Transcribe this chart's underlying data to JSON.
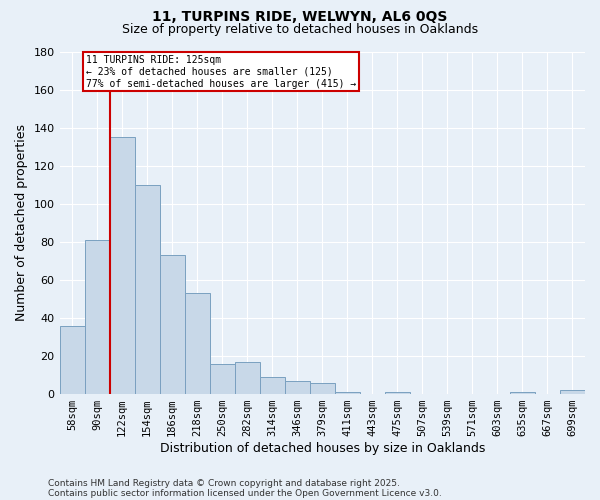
{
  "title1": "11, TURPINS RIDE, WELWYN, AL6 0QS",
  "title2": "Size of property relative to detached houses in Oaklands",
  "xlabel": "Distribution of detached houses by size in Oaklands",
  "ylabel": "Number of detached properties",
  "categories": [
    "58sqm",
    "90sqm",
    "122sqm",
    "154sqm",
    "186sqm",
    "218sqm",
    "250sqm",
    "282sqm",
    "314sqm",
    "346sqm",
    "379sqm",
    "411sqm",
    "443sqm",
    "475sqm",
    "507sqm",
    "539sqm",
    "571sqm",
    "603sqm",
    "635sqm",
    "667sqm",
    "699sqm"
  ],
  "values": [
    36,
    81,
    135,
    110,
    73,
    53,
    16,
    17,
    9,
    7,
    6,
    1,
    0,
    1,
    0,
    0,
    0,
    0,
    1,
    0,
    2
  ],
  "bar_color": "#c8d8e8",
  "bar_edge_color": "#7aa0c0",
  "red_line_index": 2,
  "property_sqm": 125,
  "pct_smaller": 23,
  "n_smaller": 125,
  "pct_larger_semi": 77,
  "n_larger_semi": 415,
  "annotation_box_color": "#ffffff",
  "annotation_box_edge": "#cc0000",
  "red_line_color": "#cc0000",
  "ylim": [
    0,
    180
  ],
  "yticks": [
    0,
    20,
    40,
    60,
    80,
    100,
    120,
    140,
    160,
    180
  ],
  "bg_color": "#e8f0f8",
  "grid_color": "#ffffff",
  "footer1": "Contains HM Land Registry data © Crown copyright and database right 2025.",
  "footer2": "Contains public sector information licensed under the Open Government Licence v3.0."
}
